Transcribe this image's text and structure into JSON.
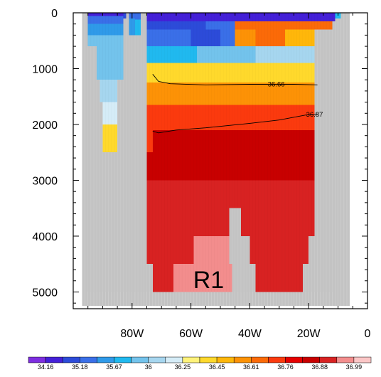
{
  "chart_data": {
    "type": "heatmap",
    "title": "",
    "xlabel": "",
    "ylabel": "",
    "x_axis": {
      "range": [
        -100,
        0
      ],
      "ticks": [
        -80,
        -60,
        -40,
        -20,
        0
      ],
      "tick_labels": [
        "80W",
        "60W",
        "40W",
        "20W",
        "0"
      ]
    },
    "y_axis": {
      "range": [
        0,
        5300
      ],
      "inverted": true,
      "ticks": [
        0,
        1000,
        2000,
        3000,
        4000,
        5000
      ],
      "tick_labels": [
        "0",
        "1000",
        "2000",
        "3000",
        "4000",
        "5000"
      ]
    },
    "missing_color": "#c3c3c3",
    "colorbar": {
      "orientation": "horizontal",
      "colors": [
        "#7d2ee0",
        "#4420d8",
        "#2c4bd9",
        "#3a6fe8",
        "#2f9ae9",
        "#20b9ef",
        "#73c3ec",
        "#a6d6ef",
        "#d5ecf7",
        "#fff27a",
        "#ffd92c",
        "#ffb70a",
        "#fd9206",
        "#fb6a08",
        "#fb3a0e",
        "#e50000",
        "#c80000",
        "#d82222",
        "#f38d8d",
        "#fbc6c6"
      ],
      "labels": [
        "34.16",
        "35.18",
        "35.67",
        "36",
        "36.25",
        "36.45",
        "36.61",
        "36.76",
        "36.88",
        "36.99"
      ]
    },
    "cells": [
      {
        "x0": -95,
        "x1": -83,
        "y0": 0,
        "y1": 60,
        "c": "#4420d8"
      },
      {
        "x0": -95,
        "x1": -83,
        "y0": 60,
        "y1": 200,
        "c": "#3a6fe8"
      },
      {
        "x0": -95,
        "x1": -83,
        "y0": 200,
        "y1": 400,
        "c": "#2f9ae9"
      },
      {
        "x0": -95,
        "x1": -83,
        "y0": 400,
        "y1": 600,
        "c": "#73c3ec"
      },
      {
        "x0": -92,
        "x1": -83,
        "y0": 600,
        "y1": 1200,
        "c": "#73c3ec"
      },
      {
        "x0": -91,
        "x1": -85,
        "y0": 1200,
        "y1": 1600,
        "c": "#a6d6ef"
      },
      {
        "x0": -90,
        "x1": -85,
        "y0": 1600,
        "y1": 2000,
        "c": "#d5ecf7"
      },
      {
        "x0": -90,
        "x1": -85,
        "y0": 2000,
        "y1": 2500,
        "c": "#ffd92c"
      },
      {
        "x0": -83,
        "x1": -82,
        "y0": 0,
        "y1": 100,
        "c": "#2c4bd9"
      },
      {
        "x0": -81,
        "x1": -79,
        "y0": 0,
        "y1": 100,
        "c": "#3a6fe8"
      },
      {
        "x0": -81,
        "x1": -79,
        "y0": 100,
        "y1": 400,
        "c": "#2f9ae9"
      },
      {
        "x0": -79,
        "x1": -77,
        "y0": 0,
        "y1": 120,
        "c": "#3a6fe8"
      },
      {
        "x0": -79,
        "x1": -77,
        "y0": 120,
        "y1": 400,
        "c": "#20b9ef"
      },
      {
        "x0": -75,
        "x1": -11,
        "y0": 0,
        "y1": 150,
        "c": "#4420d8"
      },
      {
        "x0": -11,
        "x1": -9,
        "y0": 0,
        "y1": 100,
        "c": "#20b9ef"
      },
      {
        "x0": -75,
        "x1": -55,
        "y0": 150,
        "y1": 300,
        "c": "#2c4bd9"
      },
      {
        "x0": -55,
        "x1": -45,
        "y0": 150,
        "y1": 300,
        "c": "#3a6fe8"
      },
      {
        "x0": -45,
        "x1": -30,
        "y0": 150,
        "y1": 300,
        "c": "#fb6a08"
      },
      {
        "x0": -30,
        "x1": -12,
        "y0": 150,
        "y1": 300,
        "c": "#fb6a08"
      },
      {
        "x0": -75,
        "x1": -60,
        "y0": 300,
        "y1": 600,
        "c": "#3a6fe8"
      },
      {
        "x0": -60,
        "x1": -50,
        "y0": 300,
        "y1": 600,
        "c": "#2c4bd9"
      },
      {
        "x0": -50,
        "x1": -45,
        "y0": 300,
        "y1": 600,
        "c": "#3a6fe8"
      },
      {
        "x0": -45,
        "x1": -38,
        "y0": 300,
        "y1": 600,
        "c": "#fd9206"
      },
      {
        "x0": -38,
        "x1": -28,
        "y0": 300,
        "y1": 600,
        "c": "#fb6a08"
      },
      {
        "x0": -28,
        "x1": -18,
        "y0": 300,
        "y1": 600,
        "c": "#ffb70a"
      },
      {
        "x0": -75,
        "x1": -58,
        "y0": 600,
        "y1": 900,
        "c": "#20b9ef"
      },
      {
        "x0": -58,
        "x1": -38,
        "y0": 600,
        "y1": 900,
        "c": "#73c3ec"
      },
      {
        "x0": -38,
        "x1": -18,
        "y0": 600,
        "y1": 900,
        "c": "#a6d6ef"
      },
      {
        "x0": -75,
        "x1": -18,
        "y0": 900,
        "y1": 1250,
        "c": "#ffd92c"
      },
      {
        "x0": -75,
        "x1": -18,
        "y0": 1250,
        "y1": 1650,
        "c": "#fd9206"
      },
      {
        "x0": -75,
        "x1": -18,
        "y0": 1650,
        "y1": 2100,
        "c": "#fb3a0e"
      },
      {
        "x0": -75,
        "x1": -73,
        "y0": 2100,
        "y1": 2500,
        "c": "#fb3a0e"
      },
      {
        "x0": -73,
        "x1": -18,
        "y0": 2100,
        "y1": 2500,
        "c": "#c80000"
      },
      {
        "x0": -75,
        "x1": -18,
        "y0": 2500,
        "y1": 3000,
        "c": "#c80000"
      },
      {
        "x0": -75,
        "x1": -47,
        "y0": 3000,
        "y1": 4000,
        "c": "#d82222"
      },
      {
        "x0": -47,
        "x1": -43,
        "y0": 3000,
        "y1": 3500,
        "c": "#d82222"
      },
      {
        "x0": -43,
        "x1": -18,
        "y0": 3000,
        "y1": 4000,
        "c": "#d82222"
      },
      {
        "x0": -75,
        "x1": -59,
        "y0": 4000,
        "y1": 4500,
        "c": "#d82222"
      },
      {
        "x0": -59,
        "x1": -47,
        "y0": 4000,
        "y1": 4500,
        "c": "#f38d8d"
      },
      {
        "x0": -40,
        "x1": -20,
        "y0": 4000,
        "y1": 4500,
        "c": "#d82222"
      },
      {
        "x0": -73,
        "x1": -66,
        "y0": 4500,
        "y1": 5000,
        "c": "#d82222"
      },
      {
        "x0": -66,
        "x1": -46,
        "y0": 4500,
        "y1": 5000,
        "c": "#f38d8d"
      },
      {
        "x0": -38,
        "x1": -22,
        "y0": 4500,
        "y1": 5000,
        "c": "#d82222"
      }
    ],
    "contours": [
      {
        "label": "36.66",
        "points": [
          [
            -73,
            1100
          ],
          [
            -71,
            1230
          ],
          [
            -67,
            1270
          ],
          [
            -55,
            1290
          ],
          [
            -40,
            1280
          ],
          [
            -25,
            1280
          ],
          [
            -17,
            1290
          ]
        ],
        "label_at": [
          -31,
          1280
        ]
      },
      {
        "label": "36.87",
        "points": [
          [
            -73,
            2120
          ],
          [
            -71,
            2150
          ],
          [
            -65,
            2100
          ],
          [
            -55,
            2060
          ],
          [
            -40,
            1980
          ],
          [
            -30,
            1920
          ],
          [
            -20,
            1820
          ],
          [
            -17,
            1820
          ]
        ],
        "label_at": [
          -18,
          1820
        ]
      }
    ],
    "annotations": [
      {
        "text": "R1",
        "x": -54,
        "y": 4930
      }
    ]
  }
}
